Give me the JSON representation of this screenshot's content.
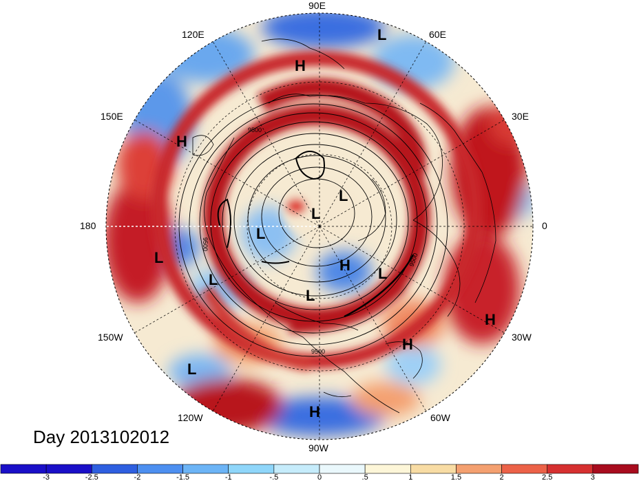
{
  "title": "Day 2013102012",
  "longitude_labels": {
    "lon_90E": "90E",
    "lon_120E": "120E",
    "lon_60E": "60E",
    "lon_150E": "150E",
    "lon_30E": "30E",
    "lon_180": "180",
    "lon_0": "0",
    "lon_150W": "150W",
    "lon_30W": "30W",
    "lon_120W": "120W",
    "lon_60W": "60W",
    "lon_90W": "90W"
  },
  "pressure_systems": [
    {
      "label": "L"
    },
    {
      "label": "H"
    },
    {
      "label": "H"
    },
    {
      "label": "L"
    },
    {
      "label": "L"
    },
    {
      "label": "L"
    },
    {
      "label": "L"
    },
    {
      "label": "L"
    },
    {
      "label": "H"
    },
    {
      "label": "L"
    },
    {
      "label": "L"
    },
    {
      "label": "H"
    },
    {
      "label": "H"
    },
    {
      "label": "L"
    },
    {
      "label": "H"
    }
  ],
  "contour_labels": [
    "9500",
    "9500",
    "9500",
    "9500"
  ],
  "colorbar": {
    "ticks": [
      "-3",
      "-2.5",
      "-2",
      "-1.5",
      "-1",
      "-.5",
      "0",
      ".5",
      "1",
      "1.5",
      "2",
      "2.5",
      "3"
    ],
    "colors": [
      "#1a0fc8",
      "#2e5fe0",
      "#4d8ff0",
      "#6cb4f6",
      "#8fd6fa",
      "#c6ecfb",
      "#eaf8fc",
      "#fdf6d8",
      "#f8dca4",
      "#f4a070",
      "#ec6248",
      "#d63030",
      "#a80c1e"
    ]
  },
  "colors": {
    "warm_anomaly": "#c8202a",
    "cold_anomaly": "#4a86e0",
    "neutral": "#f3ecd8"
  }
}
